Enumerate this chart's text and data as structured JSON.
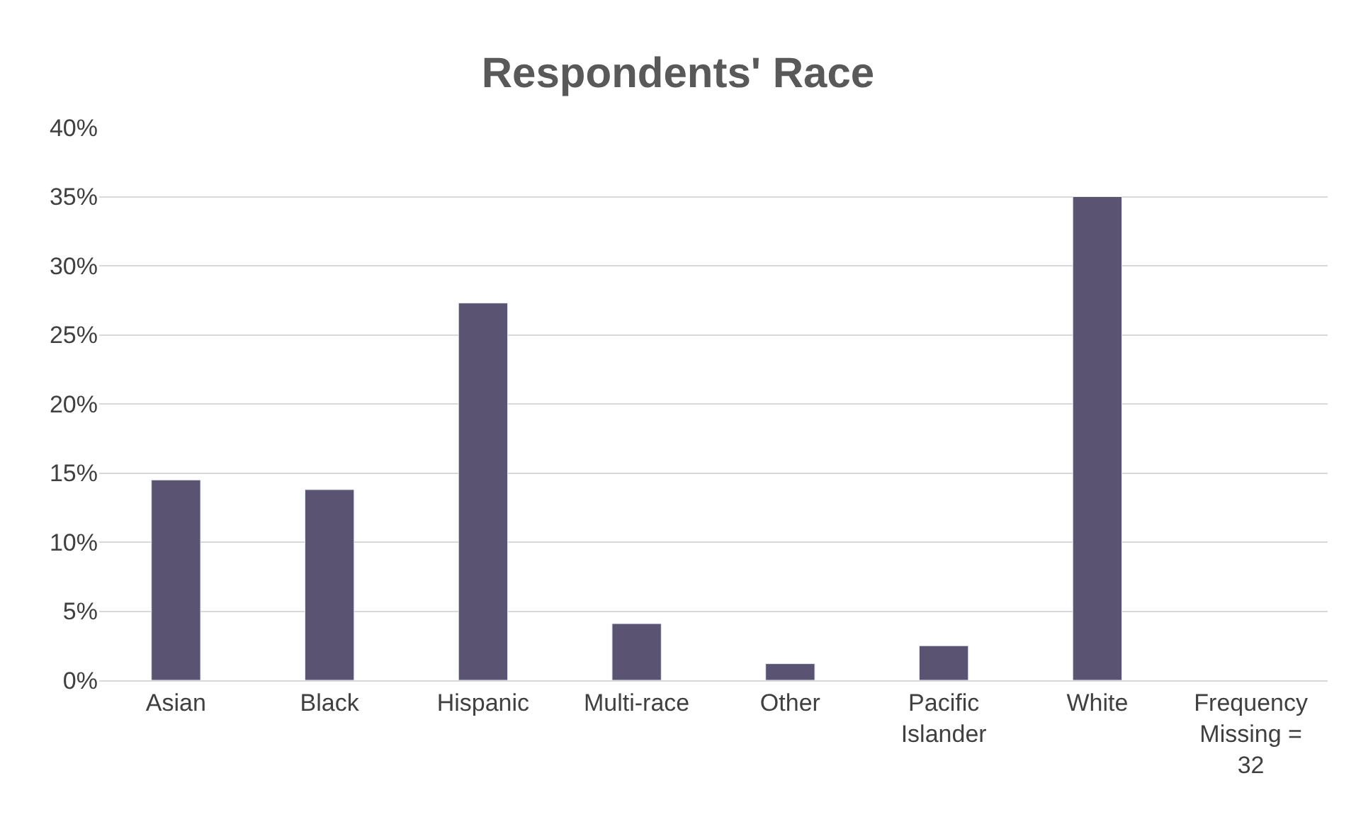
{
  "chart_data": {
    "type": "bar",
    "title": "Respondents' Race",
    "categories": [
      "Asian",
      "Black",
      "Hispanic",
      "Multi-race",
      "Other",
      "Pacific Islander",
      "White",
      "Frequency Missing = 32"
    ],
    "values": [
      14.5,
      13.8,
      27.3,
      4.1,
      1.2,
      2.5,
      35.0,
      null
    ],
    "color": "#5a5472",
    "ylim": [
      0,
      40
    ],
    "yticks": [
      {
        "value": 0,
        "label": "0%"
      },
      {
        "value": 5,
        "label": "5%"
      },
      {
        "value": 10,
        "label": "10%"
      },
      {
        "value": 15,
        "label": "15%"
      },
      {
        "value": 20,
        "label": "20%"
      },
      {
        "value": 25,
        "label": "25%"
      },
      {
        "value": 30,
        "label": "30%"
      },
      {
        "value": 35,
        "label": "35%"
      },
      {
        "value": 40,
        "label": "40%"
      }
    ],
    "grid": "y",
    "legend": false
  }
}
